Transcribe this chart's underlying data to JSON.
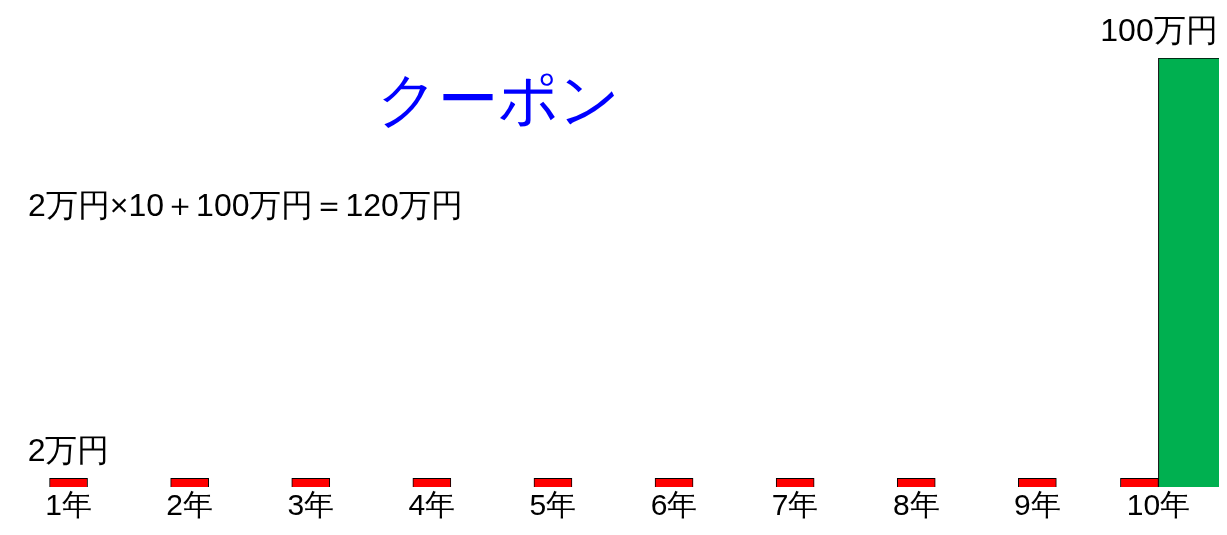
{
  "chart_data": {
    "type": "bar",
    "title": "クーポン",
    "annotations": [
      "2万円×10＋100万円＝120万円"
    ],
    "tick_labels": "x",
    "categories": [
      "1年",
      "2年",
      "3年",
      "4年",
      "5年",
      "6年",
      "7年",
      "8年",
      "9年",
      "10年"
    ],
    "series": [
      {
        "color": "#ff0000",
        "values": [
          2,
          2,
          2,
          2,
          2,
          2,
          2,
          2,
          2,
          2
        ],
        "value_labels": [
          "2万円",
          null,
          null,
          null,
          null,
          null,
          null,
          null,
          null,
          null
        ]
      },
      {
        "color": "#00b050",
        "values": [
          null,
          null,
          null,
          null,
          null,
          null,
          null,
          null,
          null,
          100
        ],
        "value_labels": [
          null,
          null,
          null,
          null,
          null,
          null,
          null,
          null,
          null,
          "100万円"
        ]
      }
    ]
  }
}
